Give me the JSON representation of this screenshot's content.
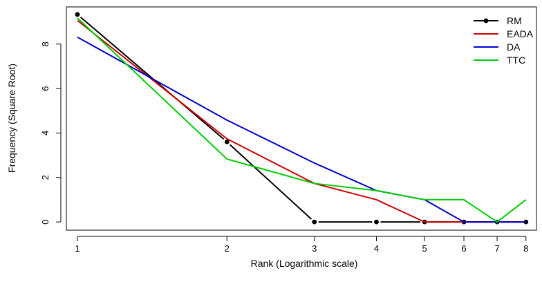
{
  "chart_data": {
    "type": "line",
    "title": "",
    "xlabel": "Rank (Logarithmic scale)",
    "ylabel": "Frequency (Square Root)",
    "x_scale": "log",
    "x": [
      1,
      2,
      3,
      4,
      5,
      6,
      7,
      8
    ],
    "x_tick_labels": [
      "1",
      "2",
      "3",
      "4",
      "5",
      "6",
      "7",
      "8"
    ],
    "y_ticks": [
      0,
      2,
      4,
      6,
      8
    ],
    "y_tick_labels": [
      "0",
      "2",
      "4",
      "6",
      "8"
    ],
    "xlim": [
      0.95,
      8.4
    ],
    "ylim": [
      -0.37,
      9.67
    ],
    "grid": false,
    "legend_position": "top-right",
    "series": [
      {
        "name": "RM",
        "color": "#000000",
        "markers": true,
        "values": [
          9.33,
          3.6,
          0,
          0,
          0,
          0,
          0,
          0
        ]
      },
      {
        "name": "EADA",
        "color": "#cc0000",
        "markers": false,
        "values": [
          9.06,
          3.74,
          1.73,
          1.0,
          0,
          0,
          0,
          0
        ]
      },
      {
        "name": "DA",
        "color": "#0000cc",
        "markers": false,
        "values": [
          8.31,
          4.58,
          2.65,
          1.41,
          1.0,
          0,
          0,
          0
        ]
      },
      {
        "name": "TTC",
        "color": "#00cc00",
        "markers": false,
        "values": [
          9.17,
          2.83,
          1.73,
          1.41,
          1.0,
          1.0,
          0,
          1.0
        ]
      }
    ]
  }
}
